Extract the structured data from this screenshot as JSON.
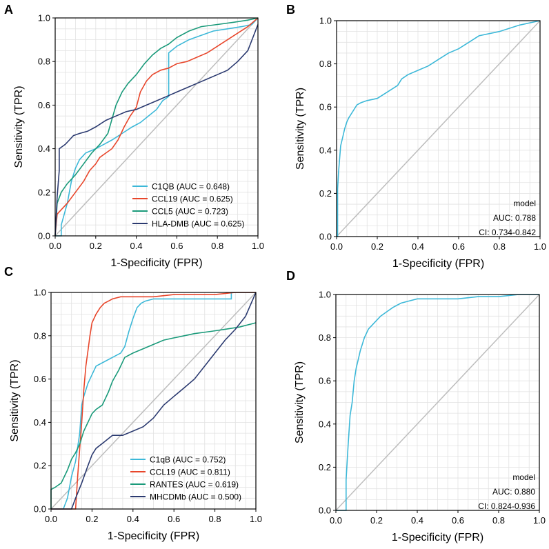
{
  "figure": {
    "labels": [
      "A",
      "B",
      "C",
      "D"
    ]
  },
  "colors": {
    "cyan": "#3CB8D8",
    "red": "#E8462B",
    "green": "#1A9A7A",
    "navy": "#2B3A70",
    "diagonal": "#BDBDBD",
    "grid": "#E2E2E2",
    "panel_bg": "#FFFFFF"
  },
  "chart_data": [
    {
      "panel": "A",
      "type": "line",
      "title": "",
      "xlabel": "1-Specificity (FPR)",
      "ylabel": "Sensitivity (TPR)",
      "xlim": [
        0,
        1
      ],
      "ylim": [
        0,
        1
      ],
      "xticks": [
        "0.0",
        "0.2",
        "0.4",
        "0.6",
        "0.8",
        "1.0"
      ],
      "yticks": [
        "0.0",
        "0.2",
        "0.4",
        "0.6",
        "0.8",
        "1.0"
      ],
      "grid": true,
      "legend_position": "bottom-right",
      "series": [
        {
          "name": "C1QB (AUC = 0.648)",
          "color": "cyan",
          "x": [
            0,
            0.03,
            0.03,
            0.06,
            0.08,
            0.1,
            0.12,
            0.15,
            0.2,
            0.24,
            0.28,
            0.33,
            0.38,
            0.42,
            0.46,
            0.5,
            0.53,
            0.56,
            0.56,
            0.6,
            0.66,
            0.72,
            0.78,
            0.85,
            0.92,
            0.97,
            1.0
          ],
          "y": [
            0,
            0,
            0.05,
            0.15,
            0.25,
            0.31,
            0.35,
            0.38,
            0.4,
            0.42,
            0.44,
            0.47,
            0.5,
            0.52,
            0.55,
            0.58,
            0.62,
            0.64,
            0.84,
            0.87,
            0.9,
            0.92,
            0.94,
            0.95,
            0.96,
            0.97,
            1.0
          ]
        },
        {
          "name": "CCL19 (AUC = 0.625)",
          "color": "red",
          "x": [
            0,
            0.01,
            0.03,
            0.06,
            0.1,
            0.14,
            0.17,
            0.2,
            0.22,
            0.25,
            0.28,
            0.31,
            0.34,
            0.37,
            0.4,
            0.42,
            0.45,
            0.48,
            0.52,
            0.56,
            0.6,
            0.65,
            0.7,
            0.75,
            0.8,
            0.85,
            0.9,
            0.95,
            1.0
          ],
          "y": [
            0,
            0.1,
            0.12,
            0.15,
            0.2,
            0.25,
            0.3,
            0.33,
            0.36,
            0.38,
            0.4,
            0.44,
            0.5,
            0.55,
            0.59,
            0.66,
            0.71,
            0.74,
            0.76,
            0.77,
            0.79,
            0.8,
            0.82,
            0.84,
            0.87,
            0.9,
            0.93,
            0.96,
            1.0
          ]
        },
        {
          "name": "CCL5 (AUC = 0.723)",
          "color": "green",
          "x": [
            0,
            0.01,
            0.03,
            0.06,
            0.1,
            0.14,
            0.18,
            0.22,
            0.26,
            0.3,
            0.33,
            0.36,
            0.4,
            0.44,
            0.48,
            0.52,
            0.56,
            0.6,
            0.66,
            0.72,
            0.8,
            0.88,
            0.95,
            1.0
          ],
          "y": [
            0,
            0.15,
            0.2,
            0.24,
            0.28,
            0.33,
            0.38,
            0.42,
            0.47,
            0.6,
            0.66,
            0.7,
            0.74,
            0.79,
            0.83,
            0.86,
            0.88,
            0.91,
            0.94,
            0.96,
            0.97,
            0.98,
            0.99,
            1.0
          ]
        },
        {
          "name": "HLA-DMB (AUC = 0.625)",
          "color": "navy",
          "x": [
            0,
            0.01,
            0.02,
            0.02,
            0.05,
            0.07,
            0.09,
            0.12,
            0.16,
            0.2,
            0.25,
            0.3,
            0.35,
            0.4,
            0.45,
            0.5,
            0.55,
            0.6,
            0.65,
            0.7,
            0.75,
            0.8,
            0.85,
            0.9,
            0.95,
            1.0
          ],
          "y": [
            0,
            0.18,
            0.3,
            0.4,
            0.42,
            0.44,
            0.46,
            0.47,
            0.48,
            0.5,
            0.53,
            0.55,
            0.57,
            0.58,
            0.6,
            0.62,
            0.64,
            0.66,
            0.68,
            0.7,
            0.72,
            0.74,
            0.76,
            0.8,
            0.85,
            0.97
          ]
        }
      ]
    },
    {
      "panel": "B",
      "type": "line",
      "title": "",
      "xlabel": "1-Specificity (FPR)",
      "ylabel": "Sensitivity (TPR)",
      "xlim": [
        0,
        1
      ],
      "ylim": [
        0,
        1
      ],
      "xticks": [
        "0.0",
        "0.2",
        "0.4",
        "0.6",
        "0.8",
        "1.0"
      ],
      "yticks": [
        "0.0",
        "0.2",
        "0.4",
        "0.6",
        "0.8",
        "1.0"
      ],
      "grid": true,
      "annotation": [
        "model",
        "AUC: 0.788",
        "CI: 0.734-0.842"
      ],
      "annotation_position": "bottom-right",
      "series": [
        {
          "name": "model",
          "color": "cyan",
          "x": [
            0,
            0.005,
            0.005,
            0.01,
            0.015,
            0.02,
            0.03,
            0.04,
            0.05,
            0.06,
            0.08,
            0.1,
            0.12,
            0.15,
            0.2,
            0.25,
            0.3,
            0.32,
            0.35,
            0.4,
            0.45,
            0.5,
            0.55,
            0.6,
            0.65,
            0.7,
            0.8,
            0.9,
            1.0
          ],
          "y": [
            0,
            0,
            0.22,
            0.3,
            0.36,
            0.42,
            0.46,
            0.5,
            0.53,
            0.55,
            0.58,
            0.61,
            0.62,
            0.63,
            0.64,
            0.67,
            0.7,
            0.73,
            0.75,
            0.77,
            0.79,
            0.82,
            0.85,
            0.87,
            0.9,
            0.93,
            0.95,
            0.98,
            1.0
          ]
        }
      ]
    },
    {
      "panel": "C",
      "type": "line",
      "title": "",
      "xlabel": "1-Specificity (FPR)",
      "ylabel": "Sensitivity (TPR)",
      "xlim": [
        0,
        1
      ],
      "ylim": [
        0,
        1
      ],
      "xticks": [
        "0.0",
        "0.2",
        "0.4",
        "0.6",
        "0.8",
        "1.0"
      ],
      "yticks": [
        "0.0",
        "0.2",
        "0.4",
        "0.6",
        "0.8",
        "1.0"
      ],
      "grid": true,
      "legend_position": "bottom-right",
      "series": [
        {
          "name": "C1qB (AUC = 0.752)",
          "color": "cyan",
          "x": [
            0,
            0.06,
            0.08,
            0.1,
            0.12,
            0.14,
            0.15,
            0.16,
            0.18,
            0.2,
            0.22,
            0.26,
            0.3,
            0.34,
            0.36,
            0.38,
            0.4,
            0.42,
            0.44,
            0.46,
            0.5,
            0.6,
            0.7,
            0.8,
            0.88,
            0.88,
            1.0
          ],
          "y": [
            0,
            0,
            0.05,
            0.15,
            0.22,
            0.35,
            0.48,
            0.52,
            0.58,
            0.62,
            0.66,
            0.68,
            0.7,
            0.72,
            0.75,
            0.82,
            0.88,
            0.93,
            0.95,
            0.96,
            0.97,
            0.97,
            0.97,
            0.97,
            0.97,
            1.0,
            1.0
          ]
        },
        {
          "name": "CCL19 (AUC = 0.811)",
          "color": "red",
          "x": [
            0,
            0.12,
            0.13,
            0.14,
            0.15,
            0.16,
            0.17,
            0.18,
            0.19,
            0.2,
            0.22,
            0.24,
            0.26,
            0.28,
            0.3,
            0.34,
            0.4,
            0.5,
            0.6,
            0.7,
            0.8,
            0.9,
            1.0
          ],
          "y": [
            0,
            0,
            0.15,
            0.28,
            0.4,
            0.55,
            0.66,
            0.73,
            0.8,
            0.86,
            0.9,
            0.93,
            0.95,
            0.96,
            0.97,
            0.98,
            0.98,
            0.98,
            0.99,
            0.99,
            0.99,
            1.0,
            1.0
          ]
        },
        {
          "name": "RANTES (AUC = 0.619)",
          "color": "green",
          "x": [
            0,
            0.0,
            0.02,
            0.05,
            0.08,
            0.1,
            0.12,
            0.14,
            0.16,
            0.18,
            0.2,
            0.22,
            0.25,
            0.28,
            0.3,
            0.33,
            0.36,
            0.4,
            0.45,
            0.5,
            0.55,
            0.6,
            0.65,
            0.7,
            0.78,
            0.85,
            0.92,
            1.0
          ],
          "y": [
            0,
            0.09,
            0.1,
            0.12,
            0.18,
            0.23,
            0.26,
            0.3,
            0.36,
            0.4,
            0.44,
            0.46,
            0.48,
            0.54,
            0.59,
            0.64,
            0.7,
            0.72,
            0.74,
            0.76,
            0.78,
            0.79,
            0.8,
            0.81,
            0.82,
            0.83,
            0.84,
            0.86
          ]
        },
        {
          "name": "MHCDMb (AUC = 0.500)",
          "color": "navy",
          "x": [
            0,
            0.1,
            0.12,
            0.15,
            0.18,
            0.2,
            0.22,
            0.26,
            0.3,
            0.35,
            0.4,
            0.45,
            0.5,
            0.55,
            0.6,
            0.65,
            0.7,
            0.75,
            0.8,
            0.85,
            0.9,
            0.95,
            1.0
          ],
          "y": [
            0,
            0,
            0.05,
            0.12,
            0.2,
            0.25,
            0.28,
            0.31,
            0.34,
            0.34,
            0.36,
            0.38,
            0.42,
            0.48,
            0.52,
            0.56,
            0.6,
            0.66,
            0.72,
            0.78,
            0.83,
            0.89,
            1.0
          ]
        }
      ]
    },
    {
      "panel": "D",
      "type": "line",
      "title": "",
      "xlabel": "1-Specificity (FPR)",
      "ylabel": "Sensitivity (TPR)",
      "xlim": [
        0,
        1
      ],
      "ylim": [
        0,
        1
      ],
      "xticks": [
        "0.0",
        "0.2",
        "0.4",
        "0.6",
        "0.8",
        "1.0"
      ],
      "yticks": [
        "0.0",
        "0.2",
        "0.4",
        "0.6",
        "0.8",
        "1.0"
      ],
      "grid": true,
      "annotation": [
        "model",
        "AUC: 0.880",
        "CI: 0.824-0.936"
      ],
      "annotation_position": "bottom-right",
      "series": [
        {
          "name": "model",
          "color": "cyan",
          "x": [
            0,
            0.05,
            0.05,
            0.06,
            0.07,
            0.08,
            0.09,
            0.1,
            0.11,
            0.12,
            0.13,
            0.14,
            0.15,
            0.16,
            0.18,
            0.2,
            0.22,
            0.25,
            0.28,
            0.32,
            0.36,
            0.4,
            0.5,
            0.6,
            0.7,
            0.8,
            0.9,
            1.0
          ],
          "y": [
            0,
            0,
            0.14,
            0.3,
            0.44,
            0.5,
            0.6,
            0.66,
            0.7,
            0.74,
            0.77,
            0.8,
            0.82,
            0.84,
            0.86,
            0.88,
            0.9,
            0.92,
            0.94,
            0.96,
            0.97,
            0.98,
            0.98,
            0.98,
            0.99,
            0.99,
            1.0,
            1.0
          ]
        }
      ]
    }
  ]
}
